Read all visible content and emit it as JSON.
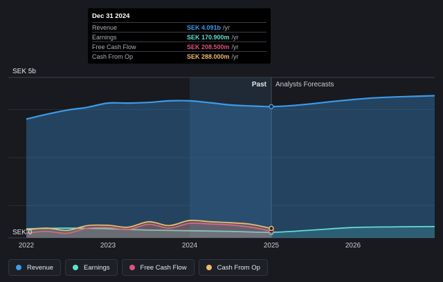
{
  "chart_data": {
    "type": "area",
    "y_unit_label": "SEK 5b",
    "y_zero_label": "SEK 0",
    "ylim": [
      0,
      5
    ],
    "x_range": [
      2022.0,
      2027.0
    ],
    "x_ticks": [
      "2022",
      "2023",
      "2024",
      "2025",
      "2026"
    ],
    "past_label": "Past",
    "forecast_label": "Analysts Forecasts",
    "divider_x": 2025.0,
    "highlight_start": 2024.0,
    "series": [
      {
        "name": "Revenue",
        "color": "#3d9be9",
        "x": [
          2022.0,
          2022.25,
          2022.5,
          2022.75,
          2023.0,
          2023.25,
          2023.5,
          2023.75,
          2024.0,
          2024.25,
          2024.5,
          2024.75,
          2025.0,
          2025.25,
          2025.5,
          2025.75,
          2026.0,
          2026.25,
          2026.5,
          2026.75,
          2027.0
        ],
        "values": [
          3.7,
          3.85,
          3.98,
          4.07,
          4.2,
          4.2,
          4.22,
          4.27,
          4.27,
          4.21,
          4.14,
          4.11,
          4.09,
          4.12,
          4.18,
          4.25,
          4.31,
          4.36,
          4.39,
          4.41,
          4.43
        ]
      },
      {
        "name": "Earnings",
        "color": "#5ee0d0",
        "x": [
          2022.0,
          2022.5,
          2023.0,
          2023.5,
          2024.0,
          2024.5,
          2025.0,
          2025.5,
          2026.0,
          2026.5,
          2027.0
        ],
        "values": [
          0.28,
          0.3,
          0.28,
          0.24,
          0.22,
          0.2,
          0.17,
          0.24,
          0.32,
          0.34,
          0.35
        ]
      },
      {
        "name": "Free Cash Flow",
        "color": "#e0527f",
        "x": [
          2022.0,
          2022.25,
          2022.5,
          2022.75,
          2023.0,
          2023.25,
          2023.5,
          2023.75,
          2024.0,
          2024.25,
          2024.5,
          2024.75,
          2025.0
        ],
        "values": [
          0.15,
          0.2,
          0.14,
          0.3,
          0.32,
          0.26,
          0.42,
          0.3,
          0.45,
          0.43,
          0.4,
          0.33,
          0.21
        ]
      },
      {
        "name": "Cash From Op",
        "color": "#f0b96a",
        "x": [
          2022.0,
          2022.25,
          2022.5,
          2022.75,
          2023.0,
          2023.25,
          2023.5,
          2023.75,
          2024.0,
          2024.25,
          2024.5,
          2024.75,
          2025.0
        ],
        "values": [
          0.25,
          0.3,
          0.23,
          0.38,
          0.39,
          0.33,
          0.5,
          0.38,
          0.54,
          0.5,
          0.47,
          0.42,
          0.29
        ]
      }
    ]
  },
  "tooltip": {
    "date": "Dec 31 2024",
    "rows": [
      {
        "label": "Revenue",
        "value": "SEK 4.091b",
        "unit": "/yr",
        "color": "#3d9be9"
      },
      {
        "label": "Earnings",
        "value": "SEK 170.900m",
        "unit": "/yr",
        "color": "#5ee0d0"
      },
      {
        "label": "Free Cash Flow",
        "value": "SEK 208.500m",
        "unit": "/yr",
        "color": "#e0527f"
      },
      {
        "label": "Cash From Op",
        "value": "SEK 288.000m",
        "unit": "/yr",
        "color": "#f0b96a"
      }
    ]
  },
  "legend": [
    {
      "label": "Revenue",
      "color": "#3d9be9"
    },
    {
      "label": "Earnings",
      "color": "#5ee0d0"
    },
    {
      "label": "Free Cash Flow",
      "color": "#e0527f"
    },
    {
      "label": "Cash From Op",
      "color": "#f0b96a"
    }
  ]
}
